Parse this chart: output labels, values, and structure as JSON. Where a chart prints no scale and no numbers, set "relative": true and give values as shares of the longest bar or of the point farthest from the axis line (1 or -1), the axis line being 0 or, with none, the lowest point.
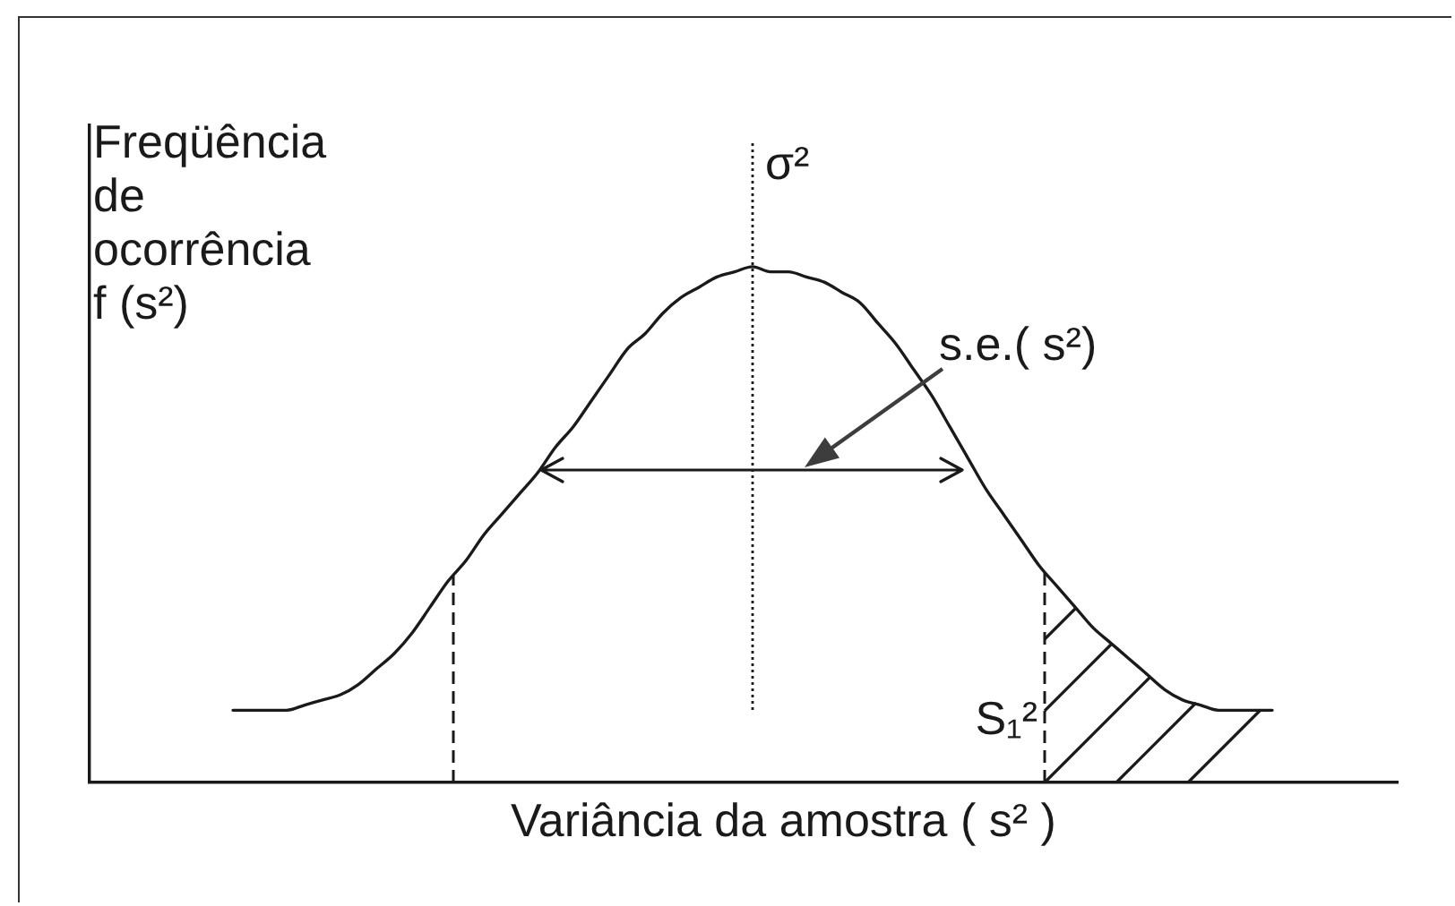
{
  "chart_data": {
    "type": "line",
    "relative": true,
    "xlabel": "Variância da amostra ( s² )",
    "ylabel": "Freqüência de ocorrência f (s²)",
    "categories": [
      null,
      null,
      null,
      null,
      null,
      null,
      null,
      null,
      null,
      null,
      null,
      null,
      null,
      null,
      null,
      null,
      null,
      null,
      null,
      null,
      null,
      null,
      null,
      null,
      null,
      null,
      null,
      null,
      null,
      null,
      null,
      null,
      null,
      null,
      null,
      null,
      null,
      null,
      null,
      null,
      null,
      null,
      null,
      null,
      null,
      null,
      null,
      null,
      null,
      null,
      null,
      null,
      null,
      null,
      null,
      null,
      null,
      null,
      null
    ],
    "color": "#1a1a1a",
    "values": [
      0.14,
      0.14,
      0.14,
      0.14,
      0.15,
      0.16,
      0.17,
      0.19,
      0.22,
      0.25,
      0.29,
      0.34,
      0.39,
      0.43,
      0.48,
      0.52,
      0.56,
      0.6,
      0.65,
      0.69,
      0.74,
      0.79,
      0.84,
      0.87,
      0.91,
      0.94,
      0.96,
      0.98,
      0.99,
      1,
      0.99,
      0.99,
      0.98,
      0.97,
      0.95,
      0.93,
      0.89,
      0.85,
      0.8,
      0.75,
      0.69,
      0.63,
      0.57,
      0.52,
      0.47,
      0.42,
      0.38,
      0.34,
      0.3,
      0.27,
      0.24,
      0.21,
      0.18,
      0.16,
      0.15,
      0.14,
      0.14,
      0.14,
      0.14
    ],
    "annotations": [
      "σ²",
      "S₁²",
      "s.e.( s²)"
    ]
  }
}
